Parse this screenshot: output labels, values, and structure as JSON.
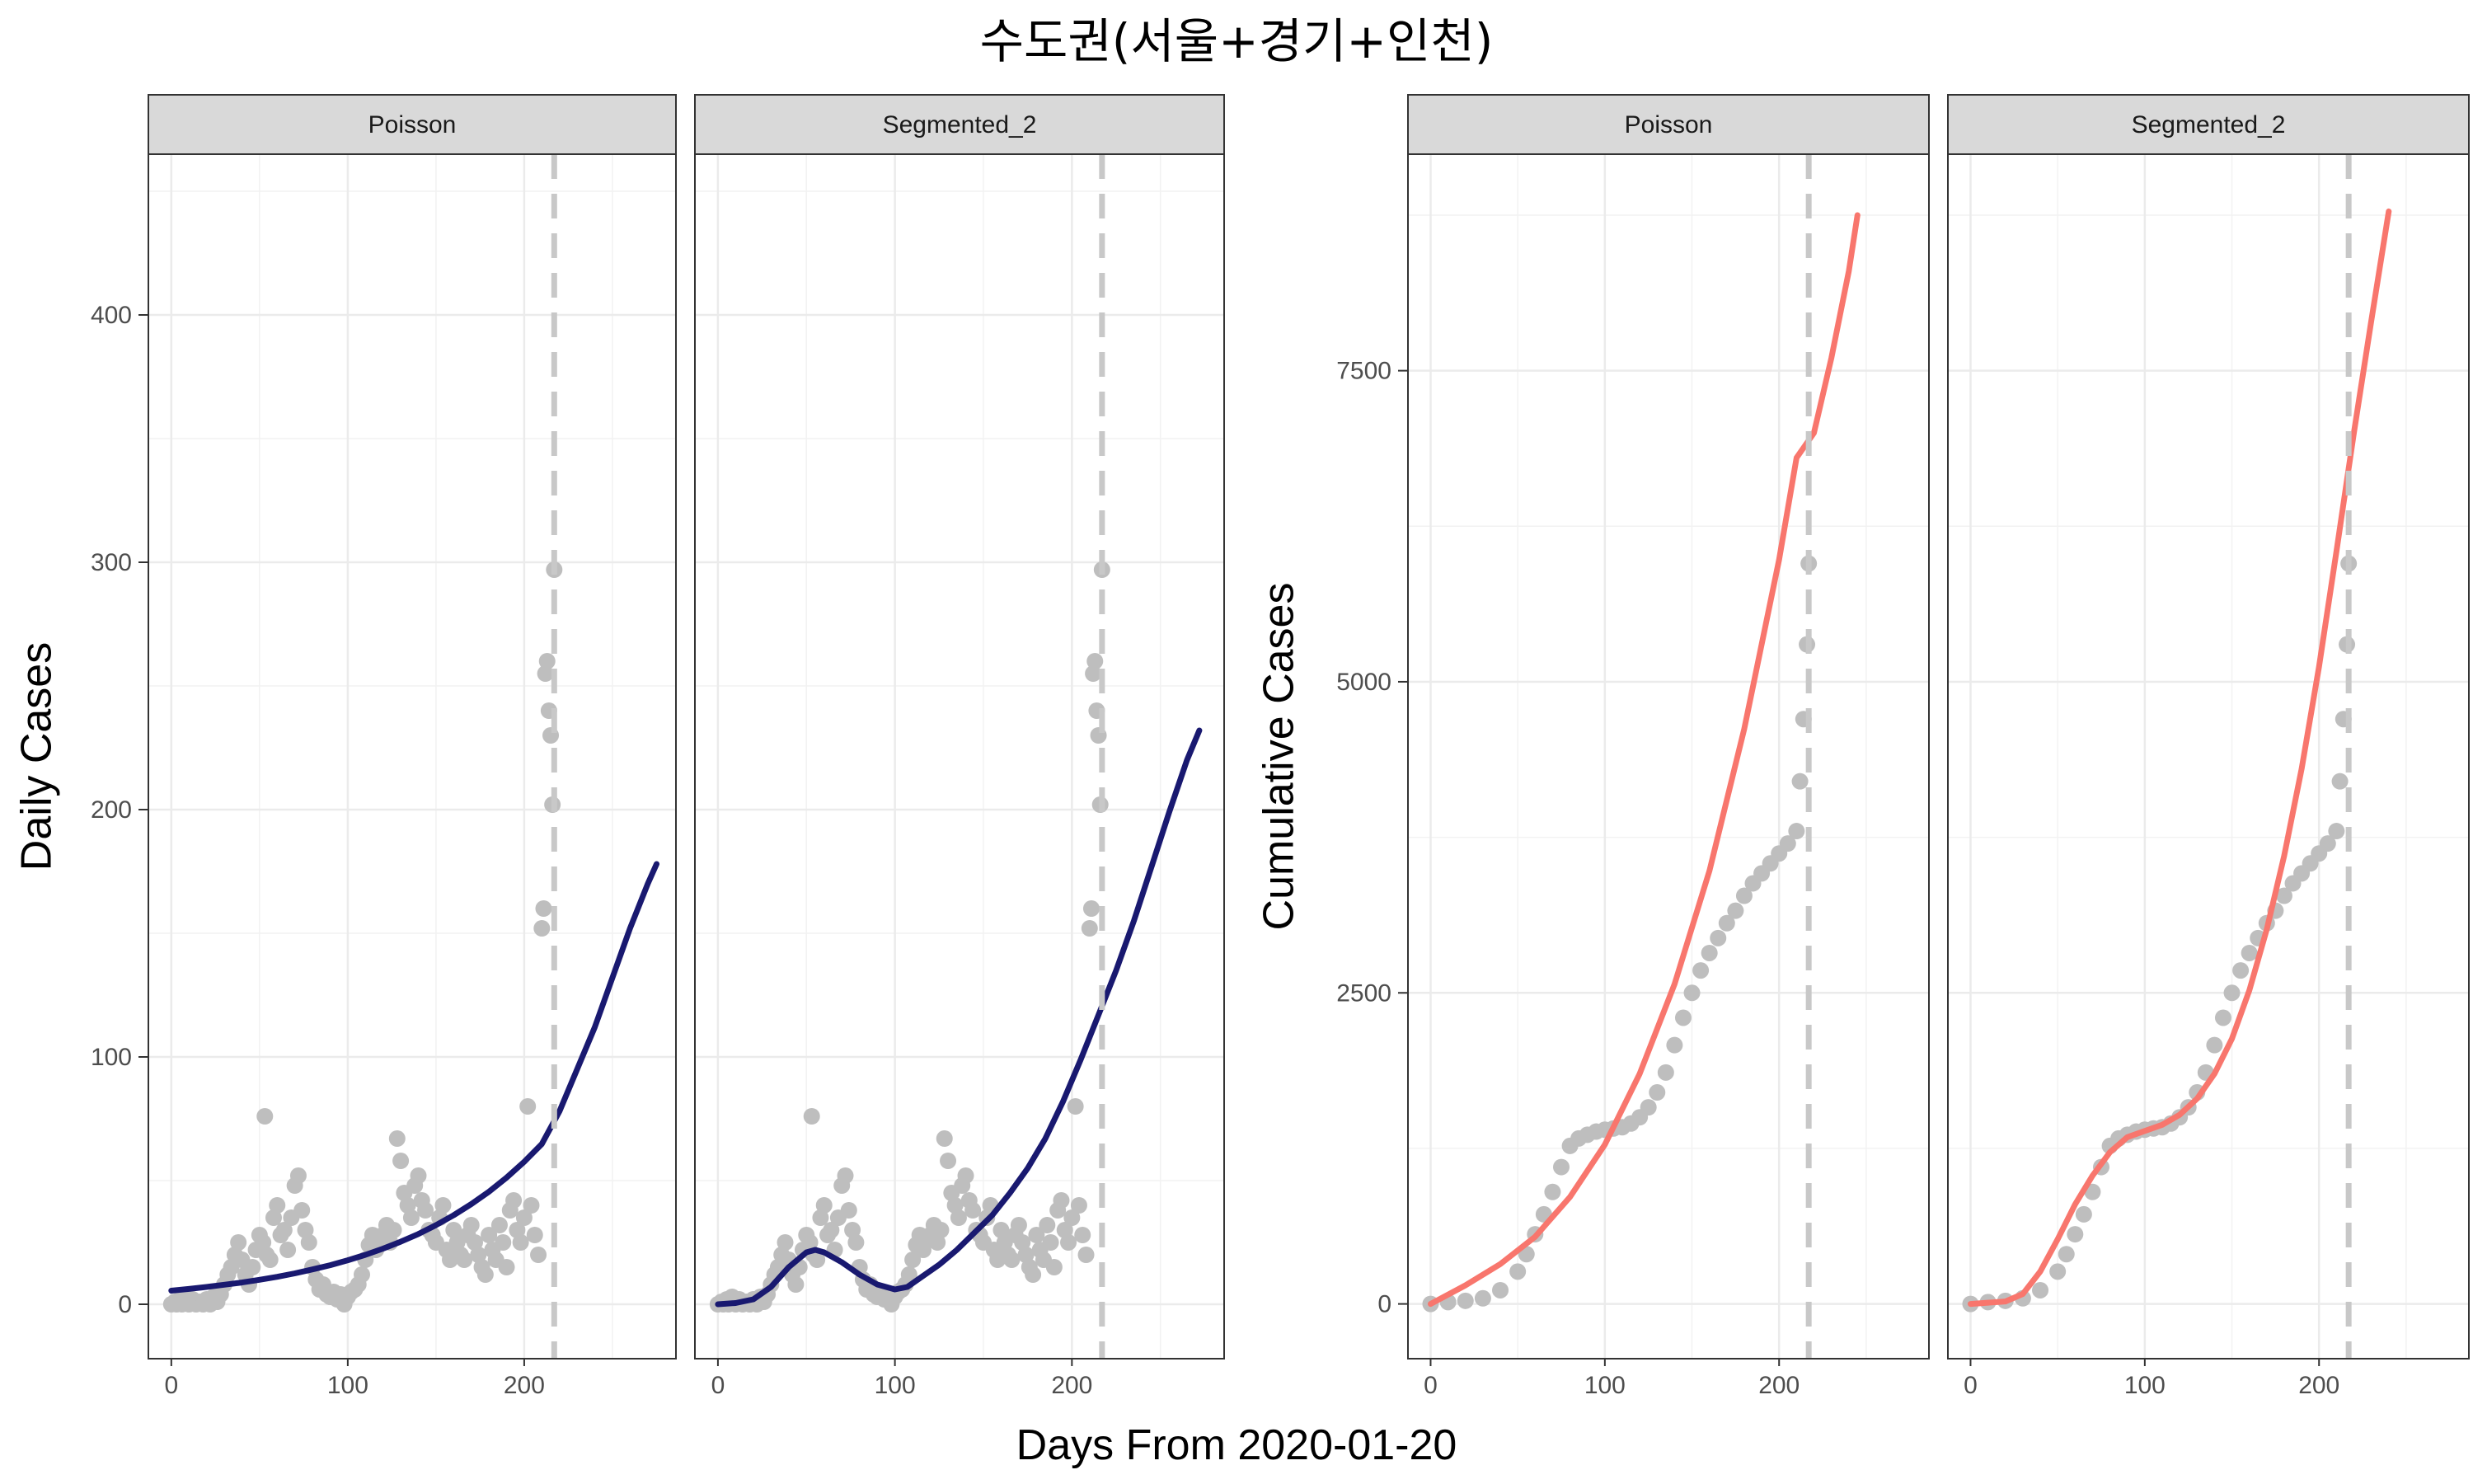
{
  "title": "수도권(서울+경기+인천)",
  "xlabel": "Days From 2020-01-20",
  "colors": {
    "points": "#bebebe",
    "daily_fit": "#191970",
    "cumulative_fit": "#f8766d",
    "vline": "#c8c8c8",
    "strip_bg": "#d9d9d9"
  },
  "chart_data": [
    {
      "type": "scatter",
      "panel_group": "daily",
      "facets": [
        "Poisson",
        "Segmented_2"
      ],
      "ylabel": "Daily Cases",
      "xlim": [
        -13,
        286
      ],
      "ylim": [
        -22,
        465
      ],
      "x_ticks": [
        0,
        100,
        200
      ],
      "y_ticks": [
        0,
        100,
        200,
        300,
        400
      ],
      "vline_x": 217,
      "grid": true,
      "observed": {
        "x": [
          0,
          2,
          3,
          5,
          6,
          8,
          9,
          10,
          12,
          14,
          16,
          18,
          20,
          22,
          24,
          26,
          28,
          30,
          32,
          34,
          36,
          38,
          40,
          42,
          44,
          46,
          48,
          50,
          52,
          53,
          54,
          56,
          58,
          60,
          62,
          64,
          66,
          68,
          70,
          72,
          74,
          76,
          78,
          80,
          82,
          84,
          86,
          88,
          90,
          92,
          94,
          96,
          98,
          100,
          102,
          104,
          106,
          108,
          110,
          112,
          114,
          116,
          118,
          120,
          122,
          124,
          126,
          128,
          130,
          132,
          134,
          136,
          138,
          140,
          142,
          144,
          146,
          148,
          150,
          152,
          154,
          156,
          158,
          160,
          162,
          164,
          166,
          168,
          170,
          172,
          174,
          176,
          178,
          180,
          182,
          184,
          186,
          188,
          190,
          192,
          194,
          196,
          198,
          200,
          202,
          204,
          206,
          208,
          210,
          211,
          212,
          213,
          214,
          215,
          216,
          217
        ],
        "y": [
          0,
          1,
          0,
          2,
          0,
          3,
          1,
          0,
          2,
          0,
          1,
          0,
          2,
          0,
          3,
          1,
          4,
          8,
          12,
          15,
          20,
          25,
          18,
          12,
          8,
          15,
          22,
          28,
          25,
          76,
          20,
          18,
          35,
          40,
          28,
          30,
          22,
          35,
          48,
          52,
          38,
          30,
          25,
          15,
          10,
          6,
          8,
          4,
          3,
          5,
          2,
          4,
          0,
          3,
          5,
          6,
          8,
          12,
          18,
          24,
          28,
          22,
          26,
          28,
          32,
          25,
          30,
          67,
          58,
          45,
          40,
          35,
          48,
          52,
          42,
          38,
          30,
          28,
          25,
          35,
          40,
          22,
          18,
          30,
          25,
          20,
          18,
          28,
          32,
          25,
          20,
          15,
          12,
          28,
          22,
          18,
          32,
          25,
          15,
          38,
          42,
          30,
          25,
          35,
          80,
          40,
          28,
          20,
          152,
          160,
          255,
          260,
          240,
          230,
          202,
          297
        ]
      },
      "series": [
        {
          "name": "Poisson",
          "x": [
            0,
            10,
            20,
            30,
            40,
            50,
            60,
            70,
            80,
            90,
            100,
            110,
            120,
            130,
            140,
            150,
            160,
            170,
            180,
            190,
            200,
            210,
            220,
            230,
            240,
            250,
            260,
            270,
            275
          ],
          "y": [
            5.5,
            6.2,
            7.0,
            7.9,
            8.8,
            9.9,
            11.1,
            12.5,
            14.1,
            15.8,
            17.8,
            20.0,
            22.5,
            25.3,
            28.4,
            32.0,
            36.0,
            40.5,
            45.5,
            51.2,
            57.6,
            64.8,
            78,
            95,
            112,
            132,
            152,
            170,
            178
          ]
        },
        {
          "name": "Segmented_2",
          "x": [
            0,
            10,
            20,
            30,
            40,
            50,
            55,
            60,
            70,
            80,
            90,
            100,
            107,
            115,
            125,
            135,
            145,
            155,
            165,
            175,
            185,
            195,
            205,
            215,
            225,
            235,
            245,
            255,
            265,
            272
          ],
          "y": [
            0,
            0.5,
            2,
            7,
            15,
            21,
            22,
            21,
            17,
            12,
            8,
            6,
            7,
            11,
            16,
            22,
            29,
            36,
            45,
            55,
            67,
            82,
            99,
            117,
            135,
            155,
            177,
            199,
            220,
            232
          ]
        }
      ]
    },
    {
      "type": "scatter",
      "panel_group": "cumulative",
      "facets": [
        "Poisson",
        "Segmented_2"
      ],
      "ylabel": "Cumulative Cases",
      "xlim": [
        -13,
        286
      ],
      "ylim": [
        -440,
        9240
      ],
      "x_ticks": [
        0,
        100,
        200
      ],
      "y_ticks": [
        0,
        2500,
        5000,
        7500
      ],
      "vline_x": 217,
      "grid": true,
      "observed": {
        "x": [
          0,
          10,
          20,
          30,
          40,
          50,
          55,
          60,
          65,
          70,
          75,
          80,
          85,
          90,
          95,
          100,
          105,
          110,
          115,
          120,
          125,
          130,
          135,
          140,
          145,
          150,
          155,
          160,
          165,
          170,
          175,
          180,
          185,
          190,
          195,
          200,
          205,
          210,
          212,
          214,
          216,
          217
        ],
        "y": [
          0,
          15,
          25,
          45,
          110,
          260,
          400,
          560,
          720,
          900,
          1100,
          1270,
          1330,
          1360,
          1385,
          1400,
          1410,
          1420,
          1450,
          1500,
          1580,
          1700,
          1860,
          2080,
          2300,
          2500,
          2680,
          2820,
          2940,
          3060,
          3160,
          3280,
          3380,
          3460,
          3540,
          3620,
          3700,
          3800,
          4200,
          4700,
          5300,
          5950
        ]
      },
      "series": [
        {
          "name": "Poisson",
          "x": [
            0,
            20,
            40,
            60,
            80,
            100,
            120,
            140,
            160,
            180,
            200,
            210,
            220,
            230,
            240,
            245
          ],
          "y": [
            0,
            150,
            320,
            540,
            860,
            1280,
            1850,
            2570,
            3480,
            4620,
            5980,
            6800,
            7000,
            7600,
            8300,
            8750
          ]
        },
        {
          "name": "Segmented_2",
          "x": [
            0,
            20,
            30,
            40,
            50,
            60,
            70,
            80,
            90,
            100,
            110,
            120,
            130,
            140,
            150,
            160,
            170,
            180,
            190,
            200,
            210,
            220,
            230,
            240
          ],
          "y": [
            0,
            20,
            80,
            260,
            520,
            800,
            1030,
            1220,
            1340,
            1390,
            1440,
            1520,
            1650,
            1850,
            2130,
            2520,
            3010,
            3600,
            4300,
            5120,
            6050,
            7000,
            7900,
            8780
          ]
        }
      ]
    }
  ]
}
